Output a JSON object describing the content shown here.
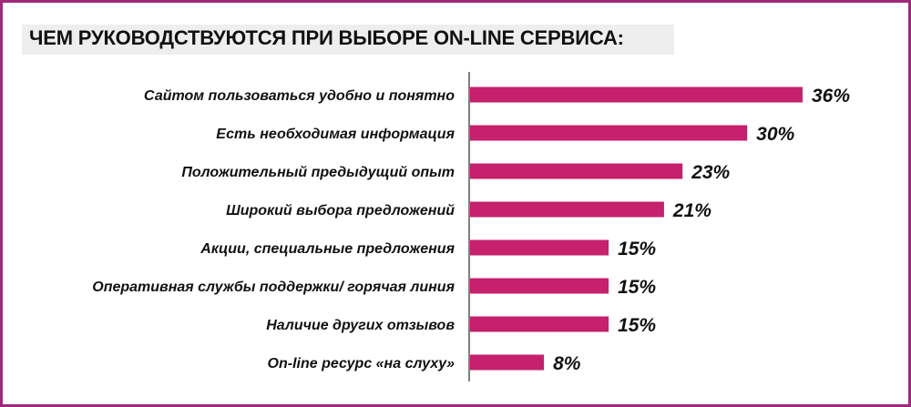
{
  "title": "ЧЕМ РУКОВОДСТВУЮТСЯ ПРИ ВЫБОРЕ ON-LINE СЕРВИСА:",
  "colors": {
    "bar": "#c5216d",
    "frame": "#9c2a78",
    "axis": "#555555",
    "title_band": "#eeeeee"
  },
  "chart_data": {
    "type": "bar",
    "orientation": "horizontal",
    "title": "ЧЕМ РУКОВОДСТВУЮТСЯ ПРИ ВЫБОРЕ ON-LINE СЕРВИСА:",
    "categories": [
      "Сайтом пользоваться удобно и понятно",
      "Есть необходимая информация",
      "Положительный предыдущий опыт",
      "Широкий выбора предложений",
      "Акции, специальные предложения",
      "Оперативная службы поддержки/ горячая линия",
      "Наличие других отзывов",
      "On-line ресурс «на слуху»"
    ],
    "values": [
      36,
      30,
      23,
      21,
      15,
      15,
      15,
      8
    ],
    "value_labels": [
      "36%",
      "30%",
      "23%",
      "21%",
      "15%",
      "15%",
      "15%",
      "8%"
    ],
    "unit": "%",
    "xlim": [
      0,
      36
    ],
    "grid": false,
    "legend": "none"
  }
}
